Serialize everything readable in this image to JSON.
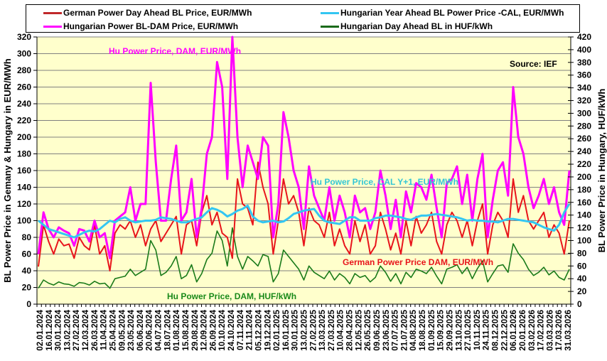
{
  "chart_data": {
    "type": "line",
    "title": "",
    "source_note": "Source: IEF",
    "ylabel_left": "BL Power Price in Gemany & Hungary in EUR/MWh",
    "ylabel_right": "BL Power Price in Hungary, HUF/kWh",
    "ylim_left": [
      0,
      320
    ],
    "ylim_right": [
      0,
      420
    ],
    "yticks_left": [
      0,
      20,
      40,
      60,
      80,
      100,
      120,
      140,
      160,
      180,
      200,
      220,
      240,
      260,
      280,
      300,
      320
    ],
    "yticks_right": [
      0,
      20,
      40,
      60,
      80,
      100,
      120,
      140,
      160,
      180,
      200,
      220,
      240,
      260,
      280,
      300,
      320,
      340,
      360,
      380,
      400,
      420
    ],
    "grid": true,
    "legend_position": "top",
    "x_tick_labels": [
      "02.01.2024",
      "16.01.2024",
      "30.01.2024",
      "13.02.2024",
      "27.02.2024",
      "12.03.2024",
      "26.03.2024",
      "11.04.2024",
      "25.04.2024",
      "09.05.2024",
      "23.05.2024",
      "06.06.2024",
      "20.06.2024",
      "04.07.2024",
      "18.07.2024",
      "01.08.2024",
      "15.08.2024",
      "29.08.2024",
      "12.09.2024",
      "26.09.2024",
      "10.10.2024",
      "24.10.2024",
      "07.11.2024",
      "21.11.2024",
      "05.12.2024",
      "19.12.2024",
      "02.01.2025",
      "16.01.2025",
      "30.01.2025",
      "13.02.2025",
      "27.02.2025",
      "13.03.2025",
      "27.03.2025",
      "10.04.2025",
      "28.04.2025",
      "12.05.2025",
      "26.05.2025",
      "09.06.2025",
      "23.06.2025",
      "07.07.2025",
      "21.07.2025",
      "04.08.2025",
      "18.08.2025",
      "01.09.2025",
      "15.09.2025",
      "29.09.2025",
      "13.10.2025",
      "27.10.2025",
      "10.11.2025",
      "24.11.2025",
      "08.12.2025",
      "22.12.2025",
      "06.01.2026",
      "20.01.2026",
      "03.02.2026",
      "17.02.2026",
      "03.03.2026",
      "17.03.2026",
      "31.03.2026"
    ],
    "series": [
      {
        "name": "German Power Day Ahead BL Price, EUR/MWh",
        "axis": "left",
        "color": "#e8141b",
        "values": [
          45,
          95,
          75,
          60,
          78,
          70,
          72,
          55,
          80,
          70,
          65,
          95,
          60,
          70,
          40,
          85,
          95,
          90,
          100,
          80,
          95,
          70,
          90,
          100,
          75,
          85,
          95,
          105,
          60,
          95,
          100,
          70,
          110,
          130,
          95,
          110,
          85,
          80,
          55,
          150,
          120,
          115,
          95,
          170,
          140,
          120,
          60,
          100,
          150,
          120,
          130,
          110,
          70,
          115,
          100,
          95,
          80,
          110,
          70,
          90,
          70,
          60,
          100,
          75,
          95,
          60,
          70,
          110,
          90,
          65,
          85,
          60,
          100,
          70,
          105,
          85,
          95,
          110,
          75,
          60,
          95,
          110,
          100,
          80,
          100,
          70,
          100,
          120,
          60,
          95,
          110,
          100,
          80,
          150,
          110,
          130,
          100,
          90,
          100,
          110,
          80,
          95,
          85,
          60,
          100
        ]
      },
      {
        "name": "Hungarian Power BL-DAM Price, EUR/MWh",
        "axis": "left",
        "color": "#ff00ff",
        "values": [
          60,
          110,
          90,
          80,
          92,
          88,
          85,
          70,
          90,
          88,
          75,
          100,
          80,
          85,
          55,
          100,
          105,
          110,
          140,
          100,
          120,
          120,
          265,
          170,
          100,
          100,
          150,
          190,
          100,
          110,
          150,
          80,
          115,
          180,
          200,
          290,
          260,
          150,
          320,
          200,
          140,
          190,
          170,
          150,
          200,
          190,
          80,
          120,
          230,
          200,
          160,
          140,
          90,
          165,
          130,
          115,
          100,
          140,
          100,
          130,
          110,
          80,
          130,
          110,
          115,
          90,
          110,
          160,
          130,
          90,
          125,
          80,
          135,
          110,
          145,
          140,
          125,
          155,
          115,
          80,
          145,
          150,
          165,
          120,
          155,
          100,
          150,
          180,
          80,
          125,
          160,
          170,
          130,
          260,
          200,
          180,
          140,
          115,
          130,
          150,
          120,
          140,
          110,
          95,
          160
        ]
      },
      {
        "name": "Hungarian Year Ahead BL Power Price -CAL, EUR/MWh",
        "axis": "left",
        "color": "#33c6f2",
        "values": [
          100,
          95,
          90,
          88,
          86,
          84,
          82,
          80,
          83,
          86,
          88,
          87,
          90,
          95,
          100,
          98,
          102,
          104,
          100,
          98,
          99,
          100,
          100,
          101,
          104,
          103,
          102,
          100,
          98,
          98,
          100,
          102,
          104,
          110,
          115,
          113,
          110,
          105,
          108,
          112,
          114,
          118,
          105,
          100,
          98,
          99,
          100,
          98,
          99,
          103,
          108,
          110,
          112,
          113,
          114,
          106,
          100,
          98,
          97,
          96,
          100,
          104,
          104,
          100,
          100,
          100,
          103,
          104,
          106,
          106,
          105,
          104,
          102,
          101,
          104,
          106,
          106,
          107,
          108,
          107,
          106,
          105,
          104,
          102,
          100,
          101,
          100,
          100,
          99,
          99,
          98,
          100,
          102,
          102,
          101,
          100,
          99,
          98,
          95,
          92,
          90,
          88,
          95,
          110,
          120
        ]
      },
      {
        "name": "Hungarian Day Ahead BL in HUF/kWh",
        "axis": "right",
        "color": "#1a7a1a",
        "values": [
          25,
          38,
          33,
          30,
          35,
          32,
          31,
          28,
          34,
          33,
          30,
          36,
          32,
          33,
          25,
          40,
          42,
          44,
          55,
          45,
          50,
          55,
          100,
          85,
          45,
          50,
          60,
          75,
          40,
          45,
          62,
          35,
          48,
          70,
          80,
          115,
          100,
          60,
          120,
          75,
          55,
          75,
          68,
          60,
          78,
          75,
          35,
          48,
          85,
          75,
          65,
          55,
          38,
          60,
          50,
          45,
          40,
          52,
          38,
          48,
          42,
          32,
          48,
          42,
          45,
          35,
          42,
          60,
          50,
          36,
          48,
          32,
          50,
          42,
          55,
          52,
          48,
          58,
          44,
          32,
          55,
          58,
          62,
          48,
          58,
          40,
          56,
          68,
          35,
          48,
          60,
          62,
          50,
          95,
          80,
          70,
          55,
          45,
          50,
          58,
          46,
          52,
          42,
          38,
          55
        ]
      }
    ],
    "annotations": [
      {
        "text": "Hu Power Price, DAM, EUR/MWh",
        "color": "#ff00ff",
        "position": "top-center-left"
      },
      {
        "text": "Hu Power Price, CAL Y+1, EUR/MWh",
        "color": "#33c6d6",
        "position": "center"
      },
      {
        "text": "German Power Price DAM, EUR/MWh",
        "color": "#e8141b",
        "position": "lower-right"
      },
      {
        "text": "Hu Power Price, DAM, HUF/kWh",
        "color": "#1a8a1a",
        "position": "bottom-center-left"
      }
    ]
  }
}
